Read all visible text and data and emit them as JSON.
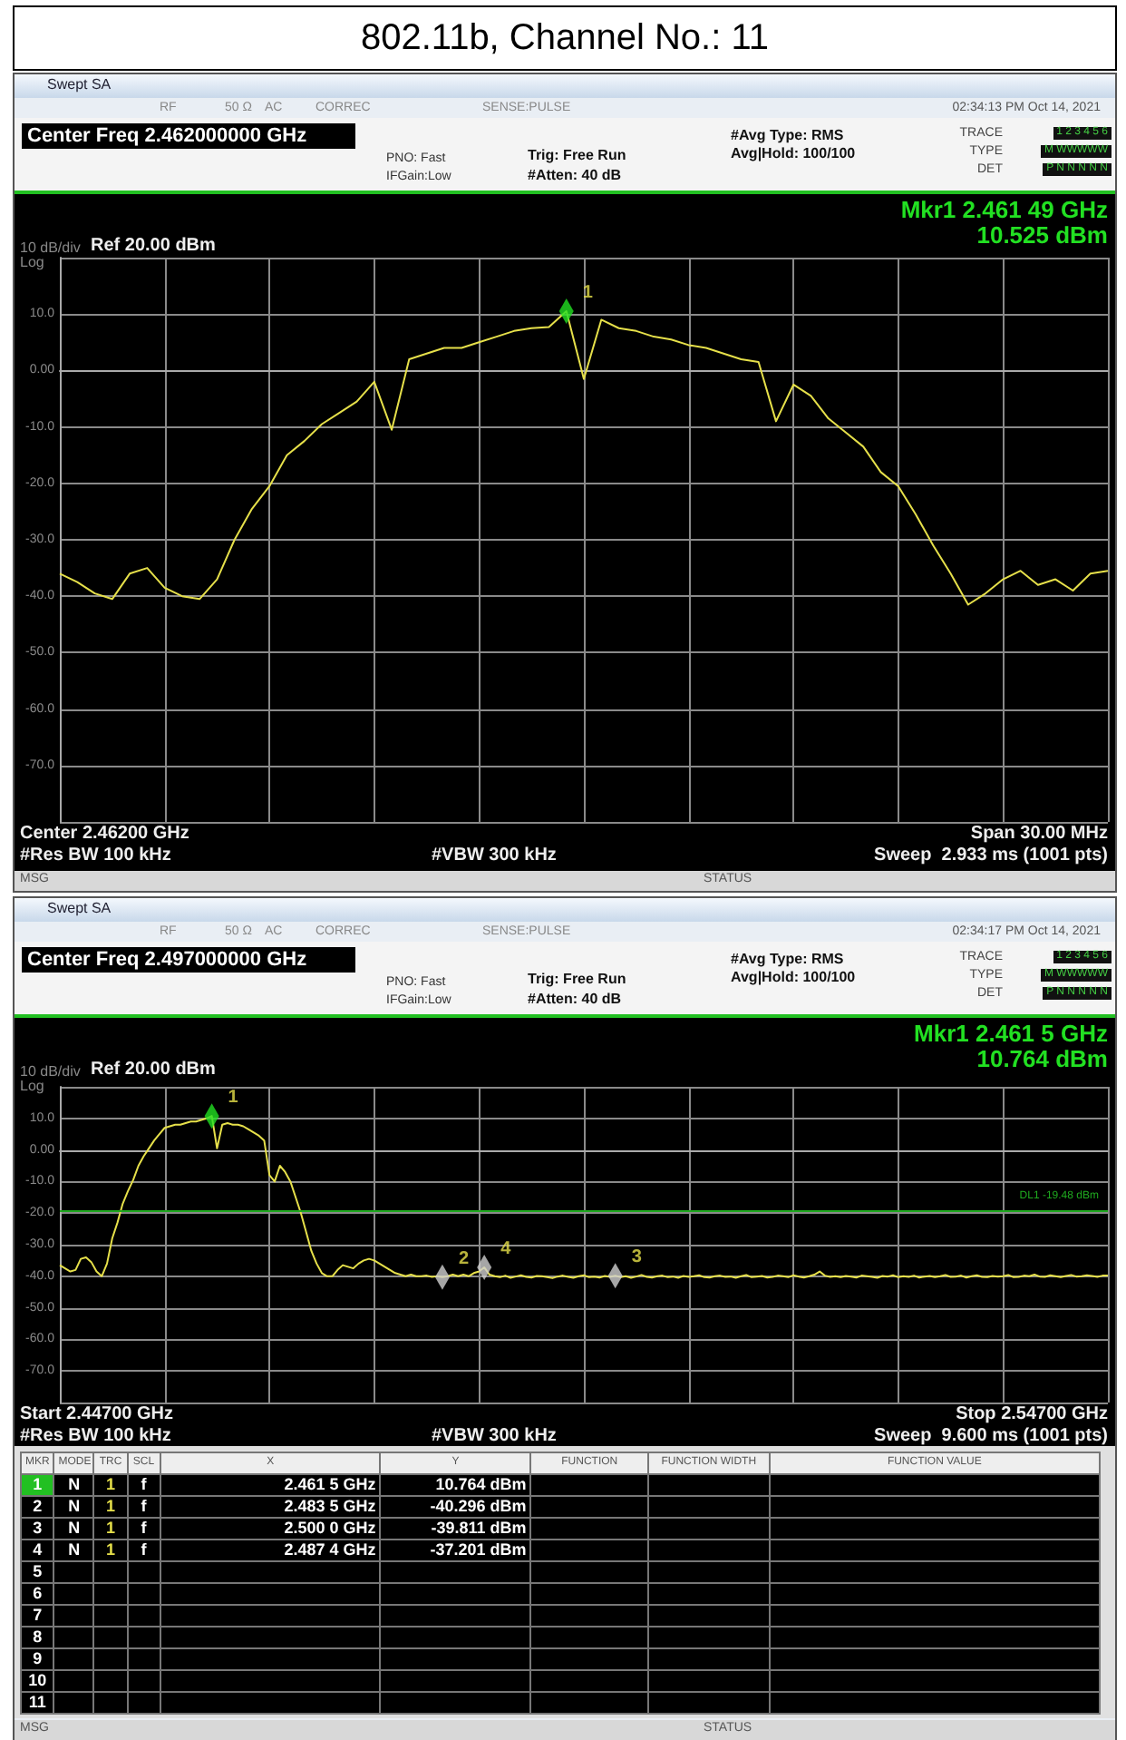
{
  "chart_data": [
    {
      "type": "line",
      "title": "802.11b, Channel No.: 11",
      "subtitle": "Center Freq 2.462000000 GHz",
      "categories": [
        null,
        null,
        null,
        null,
        null,
        null,
        null,
        null,
        null,
        null,
        null,
        null,
        null,
        null,
        null,
        null,
        null,
        null,
        null,
        null,
        null,
        null,
        null,
        null,
        null,
        null,
        null,
        null,
        null,
        null,
        null,
        null,
        null,
        null,
        null,
        null,
        null,
        null,
        null,
        null,
        null,
        null,
        null,
        null,
        null,
        null,
        null,
        null,
        null,
        null,
        null,
        null,
        null,
        null,
        null,
        null,
        null,
        null,
        null,
        null,
        null
      ],
      "series": [
        {
          "color": "#e6e04a",
          "values": [
            -36,
            -37.5,
            -39.5,
            -40.5,
            -36,
            -35,
            -38.5,
            -40,
            -40.5,
            -37,
            -30,
            -24.5,
            -20.5,
            -15,
            -12.5,
            -9.5,
            -7.5,
            -5.5,
            -2,
            -10.5,
            2,
            3,
            4,
            4,
            5,
            6,
            7,
            7.5,
            7.7,
            10.525,
            -1.5,
            9,
            7.5,
            7,
            6,
            5.5,
            4.5,
            4,
            3,
            2,
            1.5,
            -9,
            -2.5,
            -4.5,
            -8.5,
            -11,
            -13.5,
            -18,
            -20.5,
            -25.5,
            -31,
            -36,
            -41.5,
            -39.5,
            -37,
            -35.5,
            -38,
            -37,
            -39,
            -36,
            -35.5
          ]
        },
        {
          "type": "scatter",
          "name": "1",
          "marker": "diamond",
          "color": "#22e022",
          "values": [
            null,
            null,
            null,
            null,
            null,
            null,
            null,
            null,
            null,
            null,
            null,
            null,
            null,
            null,
            null,
            null,
            null,
            null,
            null,
            null,
            null,
            null,
            null,
            null,
            null,
            null,
            null,
            null,
            null,
            10.525,
            null,
            null,
            null,
            null,
            null,
            null,
            null,
            null,
            null,
            null,
            null,
            null,
            null,
            null,
            null,
            null,
            null,
            null,
            null,
            null,
            null,
            null,
            null,
            null,
            null,
            null,
            null,
            null,
            null,
            null,
            null
          ]
        }
      ],
      "ylim": [
        -80,
        20
      ],
      "yticks": [
        {
          "value": -80,
          "label": null
        },
        {
          "value": -70,
          "label": "-70.0"
        },
        {
          "value": -60,
          "label": "-60.0"
        },
        {
          "value": -50,
          "label": "-50.0"
        },
        {
          "value": -40,
          "label": "-40.0"
        },
        {
          "value": -30,
          "label": "-30.0"
        },
        {
          "value": -20,
          "label": "-20.0"
        },
        {
          "value": -10,
          "label": "-10.0"
        },
        {
          "value": 0,
          "label": "0.00"
        },
        {
          "value": 10,
          "label": "10.0"
        },
        {
          "value": 20,
          "label": null
        }
      ],
      "tick_labels": "y",
      "grid": true,
      "annotations": [
        "Swept SA",
        "RF",
        "50 Ω",
        "AC",
        "CORREC",
        "SENSE:PULSE",
        "02:34:13 PM Oct 14, 2021",
        "PNO: Fast",
        "IFGain:Low",
        "Trig: Free Run",
        "#Atten: 40 dB",
        "#Avg Type: RMS",
        "Avg|Hold: 100/100",
        "TRACE",
        "TYPE",
        "DET",
        "1 2 3 4 5 6",
        "M WWWWW",
        "P N N N N N",
        "Mkr1 2.461 49 GHz",
        "10.525 dBm",
        "10 dB/div",
        "Ref 20.00 dBm",
        "Log",
        "Center 2.46200 GHz",
        "Span 30.00 MHz",
        "#Res BW 100 kHz",
        "#VBW 300 kHz",
        "Sweep  2.933 ms (1001 pts)",
        "MSG",
        "STATUS"
      ]
    },
    {
      "type": "line",
      "subtitle": "Center Freq 2.497000000 GHz",
      "categories": [
        null,
        null,
        null,
        null,
        null,
        null,
        null,
        null,
        null,
        null,
        null,
        null,
        null,
        null,
        null,
        null,
        null,
        null,
        null,
        null,
        null,
        null,
        null,
        null,
        null,
        null,
        null,
        null,
        null,
        null,
        null,
        null,
        null,
        null,
        null,
        null,
        null,
        null,
        null,
        null,
        null,
        null,
        null,
        null,
        null,
        null,
        null,
        null,
        null,
        null,
        null,
        null,
        null,
        null,
        null,
        null,
        null,
        null,
        null,
        null,
        null,
        null,
        null,
        null,
        null,
        null,
        null,
        null,
        null,
        null,
        null,
        null,
        null,
        null,
        null,
        null,
        null,
        null,
        null,
        null,
        null,
        null,
        null,
        null,
        null,
        null,
        null,
        null,
        null,
        null,
        null,
        null,
        null,
        null,
        null,
        null,
        null,
        null,
        null,
        null,
        null,
        null,
        null,
        null,
        null,
        null,
        null,
        null,
        null,
        null,
        null,
        null,
        null,
        null,
        null,
        null,
        null,
        null,
        null,
        null,
        null,
        null,
        null,
        null,
        null,
        null,
        null,
        null,
        null,
        null,
        null,
        null,
        null,
        null,
        null,
        null,
        null,
        null,
        null,
        null,
        null,
        null,
        null,
        null,
        null,
        null,
        null,
        null,
        null,
        null,
        null,
        null,
        null,
        null,
        null,
        null,
        null,
        null,
        null,
        null,
        null,
        null,
        null,
        null,
        null,
        null,
        null,
        null,
        null,
        null,
        null,
        null,
        null,
        null,
        null,
        null,
        null,
        null,
        null,
        null,
        null,
        null,
        null,
        null,
        null,
        null,
        null,
        null,
        null,
        null,
        null,
        null,
        null,
        null,
        null,
        null,
        null,
        null,
        null,
        null,
        null
      ],
      "series": [
        {
          "color": "#e6e04a",
          "values": [
            -36.5,
            -37.5,
            -38.5,
            -38,
            -34.5,
            -34,
            -35.5,
            -38.5,
            -40,
            -36,
            -28,
            -23,
            -17,
            -13,
            -9.5,
            -5,
            -2,
            0.5,
            3,
            5,
            7,
            7.5,
            8,
            8,
            8.5,
            9,
            9,
            9.5,
            10,
            10.764,
            0.5,
            8,
            8.5,
            8,
            8,
            7.5,
            6.5,
            5.5,
            4.5,
            3,
            -8,
            -10,
            -5,
            -7,
            -10,
            -15,
            -20,
            -26,
            -32,
            -36,
            -39,
            -40,
            -40,
            -38,
            -36.5,
            -37,
            -37.5,
            -36,
            -35,
            -34.5,
            -35,
            -36,
            -37,
            -38,
            -39,
            -39.5,
            -40,
            -39.5,
            -40,
            -40,
            -39.8,
            -40.2,
            -40,
            -40.296,
            -40,
            -39.5,
            -40,
            -39.5,
            -40,
            -39,
            -38.5,
            -37.201,
            -39.5,
            -40,
            -40.3,
            -39.8,
            -40.5,
            -40.1,
            -39.7,
            -40.2,
            -40.4,
            -39.9,
            -40,
            -40.3,
            -40.6,
            -40.1,
            -39.8,
            -40.2,
            -40.5,
            -40,
            -39.7,
            -40.3,
            -40.1,
            -40.4,
            -39.9,
            -40.2,
            -39.811,
            -40.3,
            -40,
            -40.5,
            -40.1,
            -39.6,
            -40.2,
            -40.4,
            -40,
            -39.8,
            -40.3,
            -40.1,
            -40.5,
            -39.9,
            -40.2,
            -40,
            -39.7,
            -40.3,
            -40.4,
            -40,
            -39.8,
            -40.2,
            -40.1,
            -40.5,
            -40,
            -39.6,
            -40.3,
            -40.1,
            -39.9,
            -40.4,
            -40.2,
            -39.8,
            -40,
            -40.3,
            -39.7,
            -40.1,
            -40.4,
            -40,
            -39.5,
            -38.5,
            -39.8,
            -40.2,
            -40,
            -40.3,
            -39.9,
            -40.1,
            -40.4,
            -39.8,
            -40,
            -40.2,
            -40.5,
            -39.9,
            -40.1,
            -39.7,
            -40.3,
            -40,
            -40.2,
            -39.8,
            -40.4,
            -40.1,
            -39.9,
            -40.3,
            -40,
            -39.6,
            -40.2,
            -40.1,
            -39.8,
            -40.4,
            -40,
            -39.7,
            -40.2,
            -40.3,
            -39.9,
            -40.1,
            -40,
            -39.6,
            -40.3,
            -40.2,
            -39.8,
            -40,
            -39.5,
            -40.1,
            -40.2,
            -39.7,
            -40,
            -40.3,
            -39.9,
            -39.6,
            -40.1,
            -40,
            -39.7,
            -39.9,
            -40.2,
            -39.8,
            -39.8
          ]
        },
        {
          "type": "scatter",
          "name": "1",
          "marker": "diamond",
          "color": "#22e022",
          "values": [
            null,
            null,
            null,
            null,
            null,
            null,
            null,
            null,
            null,
            null,
            null,
            null,
            null,
            null,
            null,
            null,
            null,
            null,
            null,
            null,
            null,
            null,
            null,
            null,
            null,
            null,
            null,
            null,
            null,
            10.764,
            null,
            null,
            null,
            null,
            null,
            null,
            null,
            null,
            null,
            null,
            null,
            null,
            null,
            null,
            null,
            null,
            null,
            null,
            null,
            null,
            null,
            null,
            null,
            null,
            null,
            null,
            null,
            null,
            null,
            null,
            null,
            null,
            null,
            null,
            null,
            null,
            null,
            null,
            null,
            null,
            null,
            null,
            null,
            null,
            null,
            null,
            null,
            null,
            null,
            null,
            null,
            null,
            null,
            null,
            null,
            null,
            null,
            null,
            null,
            null,
            null,
            null,
            null,
            null,
            null,
            null,
            null,
            null,
            null,
            null,
            null,
            null,
            null,
            null,
            null,
            null,
            null,
            null,
            null,
            null,
            null,
            null,
            null,
            null,
            null,
            null,
            null,
            null,
            null,
            null,
            null,
            null,
            null,
            null,
            null,
            null,
            null,
            null,
            null,
            null,
            null,
            null,
            null,
            null,
            null,
            null,
            null,
            null,
            null,
            null,
            null,
            null,
            null,
            null,
            null,
            null,
            null,
            null,
            null,
            null,
            null,
            null,
            null,
            null,
            null,
            null,
            null,
            null,
            null,
            null,
            null,
            null,
            null,
            null,
            null,
            null,
            null,
            null,
            null,
            null,
            null,
            null,
            null,
            null,
            null,
            null,
            null,
            null,
            null,
            null,
            null,
            null,
            null,
            null,
            null,
            null,
            null,
            null,
            null,
            null,
            null,
            null,
            null,
            null,
            null,
            null,
            null,
            null,
            null,
            null,
            null
          ]
        },
        {
          "type": "scatter",
          "name": "2",
          "marker": "diamond",
          "color": "#d0d0d0",
          "values": [
            null,
            null,
            null,
            null,
            null,
            null,
            null,
            null,
            null,
            null,
            null,
            null,
            null,
            null,
            null,
            null,
            null,
            null,
            null,
            null,
            null,
            null,
            null,
            null,
            null,
            null,
            null,
            null,
            null,
            null,
            null,
            null,
            null,
            null,
            null,
            null,
            null,
            null,
            null,
            null,
            null,
            null,
            null,
            null,
            null,
            null,
            null,
            null,
            null,
            null,
            null,
            null,
            null,
            null,
            null,
            null,
            null,
            null,
            null,
            null,
            null,
            null,
            null,
            null,
            null,
            null,
            null,
            null,
            null,
            null,
            null,
            null,
            null,
            -40.296,
            null,
            null,
            null,
            null,
            null,
            null,
            null,
            null,
            null,
            null,
            null,
            null,
            null,
            null,
            null,
            null,
            null,
            null,
            null,
            null,
            null,
            null,
            null,
            null,
            null,
            null,
            null,
            null,
            null,
            null,
            null,
            null,
            null,
            null,
            null,
            null,
            null,
            null,
            null,
            null,
            null,
            null,
            null,
            null,
            null,
            null,
            null,
            null,
            null,
            null,
            null,
            null,
            null,
            null,
            null,
            null,
            null,
            null,
            null,
            null,
            null,
            null,
            null,
            null,
            null,
            null,
            null,
            null,
            null,
            null,
            null,
            null,
            null,
            null,
            null,
            null,
            null,
            null,
            null,
            null,
            null,
            null,
            null,
            null,
            null,
            null,
            null,
            null,
            null,
            null,
            null,
            null,
            null,
            null,
            null,
            null,
            null,
            null,
            null,
            null,
            null,
            null,
            null,
            null,
            null,
            null,
            null,
            null,
            null,
            null,
            null,
            null,
            null,
            null,
            null,
            null,
            null,
            null,
            null,
            null,
            null,
            null,
            null,
            null,
            null,
            null,
            null
          ]
        },
        {
          "type": "scatter",
          "name": "3",
          "marker": "diamond",
          "color": "#d0d0d0",
          "values": [
            null,
            null,
            null,
            null,
            null,
            null,
            null,
            null,
            null,
            null,
            null,
            null,
            null,
            null,
            null,
            null,
            null,
            null,
            null,
            null,
            null,
            null,
            null,
            null,
            null,
            null,
            null,
            null,
            null,
            null,
            null,
            null,
            null,
            null,
            null,
            null,
            null,
            null,
            null,
            null,
            null,
            null,
            null,
            null,
            null,
            null,
            null,
            null,
            null,
            null,
            null,
            null,
            null,
            null,
            null,
            null,
            null,
            null,
            null,
            null,
            null,
            null,
            null,
            null,
            null,
            null,
            null,
            null,
            null,
            null,
            null,
            null,
            null,
            null,
            null,
            null,
            null,
            null,
            null,
            null,
            null,
            null,
            null,
            null,
            null,
            null,
            null,
            null,
            null,
            null,
            null,
            null,
            null,
            null,
            null,
            null,
            null,
            null,
            null,
            null,
            null,
            null,
            null,
            null,
            null,
            null,
            -39.811,
            null,
            null,
            null,
            null,
            null,
            null,
            null,
            null,
            null,
            null,
            null,
            null,
            null,
            null,
            null,
            null,
            null,
            null,
            null,
            null,
            null,
            null,
            null,
            null,
            null,
            null,
            null,
            null,
            null,
            null,
            null,
            null,
            null,
            null,
            null,
            null,
            null,
            null,
            null,
            null,
            null,
            null,
            null,
            null,
            null,
            null,
            null,
            null,
            null,
            null,
            null,
            null,
            null,
            null,
            null,
            null,
            null,
            null,
            null,
            null,
            null,
            null,
            null,
            null,
            null,
            null,
            null,
            null,
            null,
            null,
            null,
            null,
            null,
            null,
            null,
            null,
            null,
            null,
            null,
            null,
            null,
            null,
            null,
            null,
            null,
            null,
            null,
            null,
            null,
            null,
            null,
            null,
            null,
            null
          ]
        },
        {
          "type": "scatter",
          "name": "4",
          "marker": "diamond",
          "color": "#d0d0d0",
          "values": [
            null,
            null,
            null,
            null,
            null,
            null,
            null,
            null,
            null,
            null,
            null,
            null,
            null,
            null,
            null,
            null,
            null,
            null,
            null,
            null,
            null,
            null,
            null,
            null,
            null,
            null,
            null,
            null,
            null,
            null,
            null,
            null,
            null,
            null,
            null,
            null,
            null,
            null,
            null,
            null,
            null,
            null,
            null,
            null,
            null,
            null,
            null,
            null,
            null,
            null,
            null,
            null,
            null,
            null,
            null,
            null,
            null,
            null,
            null,
            null,
            null,
            null,
            null,
            null,
            null,
            null,
            null,
            null,
            null,
            null,
            null,
            null,
            null,
            null,
            null,
            null,
            null,
            null,
            null,
            null,
            null,
            -37.201,
            null,
            null,
            null,
            null,
            null,
            null,
            null,
            null,
            null,
            null,
            null,
            null,
            null,
            null,
            null,
            null,
            null,
            null,
            null,
            null,
            null,
            null,
            null,
            null,
            null,
            null,
            null,
            null,
            null,
            null,
            null,
            null,
            null,
            null,
            null,
            null,
            null,
            null,
            null,
            null,
            null,
            null,
            null,
            null,
            null,
            null,
            null,
            null,
            null,
            null,
            null,
            null,
            null,
            null,
            null,
            null,
            null,
            null,
            null,
            null,
            null,
            null,
            null,
            null,
            null,
            null,
            null,
            null,
            null,
            null,
            null,
            null,
            null,
            null,
            null,
            null,
            null,
            null,
            null,
            null,
            null,
            null,
            null,
            null,
            null,
            null,
            null,
            null,
            null,
            null,
            null,
            null,
            null,
            null,
            null,
            null,
            null,
            null,
            null,
            null,
            null,
            null,
            null,
            null,
            null,
            null,
            null,
            null,
            null,
            null,
            null,
            null,
            null,
            null,
            null,
            null,
            null,
            null,
            null
          ]
        }
      ],
      "ylim": [
        -80,
        20
      ],
      "yticks": [
        {
          "value": -80,
          "label": null
        },
        {
          "value": -70,
          "label": "-70.0"
        },
        {
          "value": -60,
          "label": "-60.0"
        },
        {
          "value": -50,
          "label": "-50.0"
        },
        {
          "value": -40,
          "label": "-40.0"
        },
        {
          "value": -30,
          "label": "-30.0"
        },
        {
          "value": -20,
          "label": "-20.0"
        },
        {
          "value": -10,
          "label": "-10.0"
        },
        {
          "value": 0,
          "label": "0.00"
        },
        {
          "value": 10,
          "label": "10.0"
        },
        {
          "value": 20,
          "label": null
        }
      ],
      "tick_labels": "y",
      "grid": true,
      "ref_lines": [
        {
          "axis": "y",
          "value": -19.48,
          "label": "DL1 -19.48 dBm",
          "color": "#1fa81f"
        }
      ],
      "annotations": [
        "Swept SA",
        "RF",
        "50 Ω",
        "AC",
        "CORREC",
        "SENSE:PULSE",
        "02:34:17 PM Oct 14, 2021",
        "PNO: Fast",
        "IFGain:Low",
        "Trig: Free Run",
        "#Atten: 40 dB",
        "#Avg Type: RMS",
        "Avg|Hold: 100/100",
        "TRACE",
        "TYPE",
        "DET",
        "1 2 3 4 5 6",
        "M WWWWW",
        "P N N N N N",
        "Mkr1 2.461 5 GHz",
        "10.764 dBm",
        "10 dB/div",
        "Ref 20.00 dBm",
        "Log",
        "Start 2.44700 GHz",
        "Stop 2.54700 GHz",
        "#Res BW 100 kHz",
        "#VBW 300 kHz",
        "Sweep  9.600 ms (1001 pts)",
        "MSG",
        "STATUS",
        "MKR",
        "MODE",
        "TRC",
        "SCL",
        "X",
        "Y",
        "FUNCTION",
        "FUNCTION WIDTH",
        "FUNCTION VALUE",
        "1",
        "N",
        "1",
        "f",
        "2.461 5 GHz",
        "10.764 dBm",
        "2",
        "N",
        "1",
        "f",
        "2.483 5 GHz",
        "-40.296 dBm",
        "3",
        "N",
        "1",
        "f",
        "2.500 0 GHz",
        "-39.811 dBm",
        "4",
        "N",
        "1",
        "f",
        "2.487 4 GHz",
        "-37.201 dBm",
        "5",
        "6",
        "7",
        "8",
        "9",
        "10",
        "11"
      ]
    }
  ]
}
